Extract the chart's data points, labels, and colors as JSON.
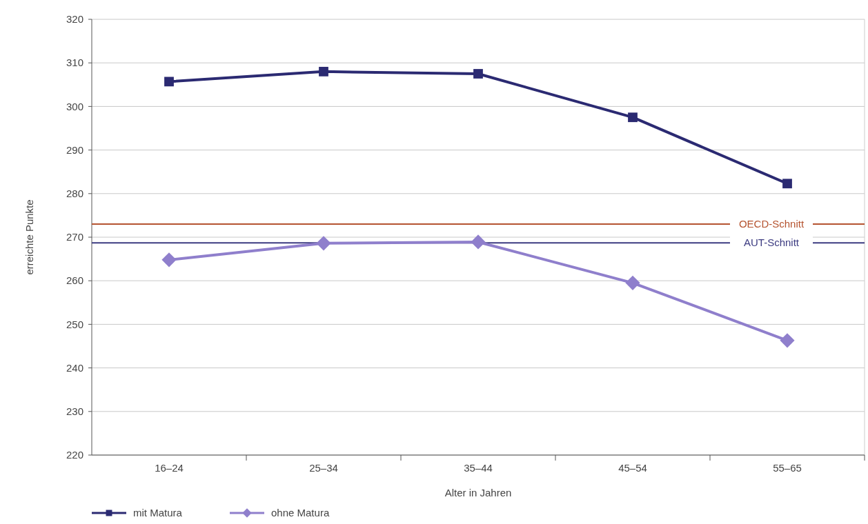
{
  "chart_data": {
    "type": "line",
    "xlabel": "Alter in Jahren",
    "ylabel": "erreichte Punkte",
    "categories": [
      "16–24",
      "25–34",
      "35–44",
      "45–54",
      "55–65"
    ],
    "series": [
      {
        "name": "mit Matura",
        "color": "#2b2a72",
        "values": [
          305.7,
          308,
          307.5,
          297.5,
          282.3
        ],
        "marker": "square"
      },
      {
        "name": "ohne Matura",
        "color": "#8f7fcc",
        "values": [
          264.8,
          268.6,
          268.9,
          259.5,
          246.3
        ],
        "marker": "diamond"
      }
    ],
    "ylim": [
      220,
      320
    ],
    "yticks": [
      220,
      230,
      240,
      250,
      260,
      270,
      280,
      290,
      300,
      310,
      320
    ],
    "ref_lines": [
      {
        "axis": "y",
        "value": 273,
        "label": "OECD-Schnitt",
        "color": "#b5532f"
      },
      {
        "axis": "y",
        "value": 268.7,
        "label": "AUT-Schnitt",
        "color": "#3b3a80"
      }
    ],
    "grid": "y",
    "legend": "bottom left",
    "line_style": "solid"
  }
}
